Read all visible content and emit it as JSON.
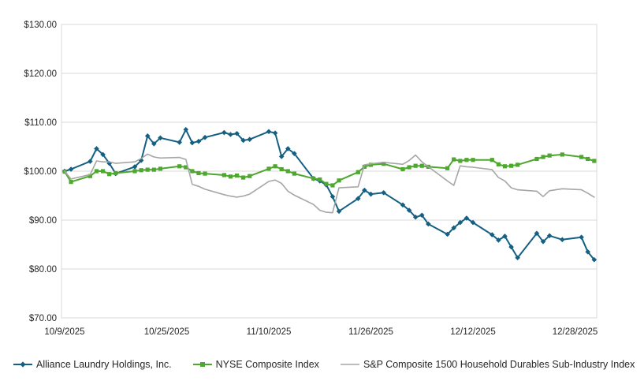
{
  "chart_data": {
    "type": "line",
    "title": "",
    "legend_position": "bottom",
    "grid": "horizontal",
    "colors": {
      "alliance_blue": "#156082",
      "nyse_green": "#4EA72E",
      "sp_gray": "#A6A6A6",
      "axis_text": "#262626",
      "gridline": "#D9D9D9"
    },
    "y_axis": {
      "min": 70,
      "max": 130,
      "step": 10,
      "tick_labels": [
        "$70.00",
        "$80.00",
        "$90.00",
        "$100.00",
        "$110.00",
        "$120.00",
        "$130.00"
      ]
    },
    "x_axis": {
      "type": "date",
      "tick_labels": [
        "10/9/2025",
        "10/25/2025",
        "11/10/2025",
        "11/26/2025",
        "12/12/2025",
        "12/28/2025"
      ]
    },
    "dates": [
      "10/9/2025",
      "10/10/2025",
      "10/13/2025",
      "10/14/2025",
      "10/15/2025",
      "10/16/2025",
      "10/17/2025",
      "10/20/2025",
      "10/21/2025",
      "10/22/2025",
      "10/23/2025",
      "10/24/2025",
      "10/27/2025",
      "10/28/2025",
      "10/29/2025",
      "10/30/2025",
      "10/31/2025",
      "11/3/2025",
      "11/4/2025",
      "11/5/2025",
      "11/6/2025",
      "11/7/2025",
      "11/10/2025",
      "11/11/2025",
      "11/12/2025",
      "11/13/2025",
      "11/14/2025",
      "11/17/2025",
      "11/18/2025",
      "11/19/2025",
      "11/20/2025",
      "11/21/2025",
      "11/24/2025",
      "11/25/2025",
      "11/26/2025",
      "11/28/2025",
      "12/1/2025",
      "12/2/2025",
      "12/3/2025",
      "12/4/2025",
      "12/5/2025",
      "12/8/2025",
      "12/9/2025",
      "12/10/2025",
      "12/11/2025",
      "12/12/2025",
      "12/15/2025",
      "12/16/2025",
      "12/17/2025",
      "12/18/2025",
      "12/19/2025",
      "12/22/2025",
      "12/23/2025",
      "12/24/2025",
      "12/26/2025",
      "12/29/2025",
      "12/30/2025",
      "12/31/2025"
    ],
    "series": [
      {
        "name": "Alliance Laundry Holdings, Inc.",
        "color": "#156082",
        "marker": "diamond",
        "line_width": 2,
        "values": [
          100.0,
          100.4,
          102.0,
          104.6,
          103.4,
          101.6,
          99.5,
          100.9,
          102.2,
          107.2,
          105.6,
          106.8,
          105.9,
          108.5,
          105.8,
          106.1,
          106.9,
          107.9,
          107.5,
          107.7,
          106.3,
          106.5,
          108.1,
          107.8,
          103.0,
          104.6,
          103.6,
          98.5,
          98.0,
          97.2,
          94.8,
          91.8,
          94.4,
          96.1,
          95.3,
          95.6,
          93.1,
          92.0,
          90.6,
          91.0,
          89.2,
          87.1,
          88.4,
          89.5,
          90.4,
          89.5,
          87.0,
          85.9,
          86.7,
          84.5,
          82.3,
          87.3,
          85.6,
          86.8,
          86.0,
          86.5,
          83.5,
          81.9
        ]
      },
      {
        "name": "NYSE Composite Index",
        "color": "#4EA72E",
        "marker": "square",
        "line_width": 2,
        "values": [
          99.9,
          97.8,
          99.0,
          100.0,
          100.0,
          99.4,
          99.6,
          100.0,
          100.2,
          100.3,
          100.3,
          100.5,
          101.0,
          100.8,
          100.0,
          99.6,
          99.5,
          99.2,
          98.9,
          99.1,
          98.7,
          99.0,
          100.5,
          101.0,
          100.4,
          100.0,
          99.5,
          98.5,
          98.3,
          97.4,
          97.1,
          98.1,
          99.8,
          100.9,
          101.3,
          101.5,
          100.4,
          100.8,
          101.1,
          101.1,
          100.9,
          100.6,
          102.4,
          102.1,
          102.3,
          102.3,
          102.3,
          101.4,
          101.0,
          101.1,
          101.3,
          102.5,
          102.9,
          103.2,
          103.4,
          102.9,
          102.5,
          102.1
        ]
      },
      {
        "name": "S&P Composite 1500 Household Durables Sub-Industry Index",
        "color": "#A6A6A6",
        "marker": "none",
        "line_width": 1.6,
        "values": [
          100.0,
          98.4,
          99.3,
          102.1,
          101.9,
          101.9,
          101.6,
          101.9,
          102.6,
          103.5,
          102.9,
          102.7,
          102.8,
          102.4,
          97.3,
          96.9,
          96.3,
          95.2,
          94.9,
          94.7,
          94.9,
          95.3,
          97.9,
          98.2,
          97.5,
          95.9,
          95.1,
          93.2,
          92.0,
          91.6,
          91.5,
          96.6,
          96.8,
          101.3,
          101.5,
          101.8,
          101.4,
          102.2,
          103.3,
          101.9,
          100.9,
          98.0,
          97.1,
          101.1,
          100.9,
          100.8,
          100.3,
          98.7,
          98.0,
          96.6,
          96.2,
          95.9,
          94.8,
          96.0,
          96.4,
          96.2,
          95.5,
          94.7
        ]
      }
    ]
  }
}
